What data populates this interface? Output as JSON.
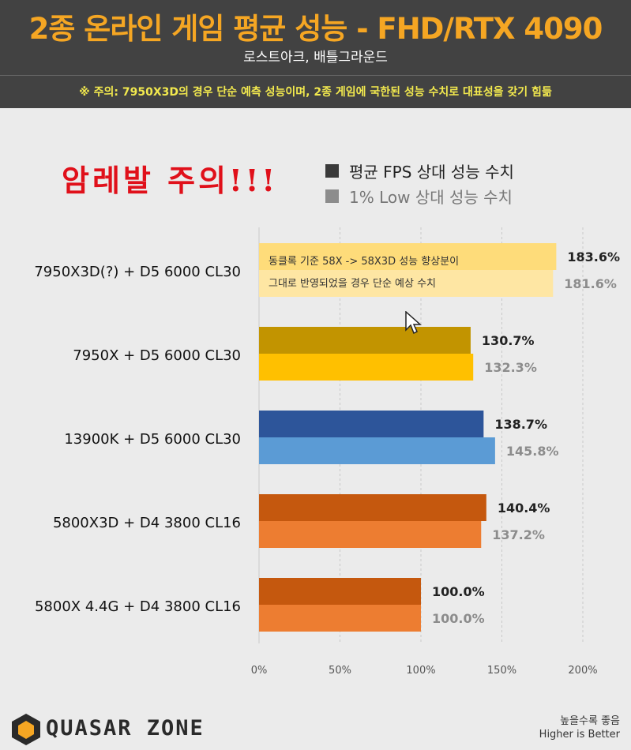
{
  "header": {
    "title": "2종 온라인 게임 평균 성능  -  FHD/RTX 4090",
    "subtitle": "로스트아크, 배틀그라운드",
    "note": "※ 주의: 7950X3D의 경우 단순 예측 성능이며, 2종 게임에 국한된 성능 수치로 대표성을 갖기 힘듦"
  },
  "warning": "암레발 주의!!!",
  "legend": [
    {
      "label": "평균 FPS 상대 성능 수치",
      "color": "#3a3a3a"
    },
    {
      "label": "1% Low 상대 성능 수치",
      "color": "#8c8c8c"
    }
  ],
  "callout": {
    "line1": "동클록 기준 58X -> 58X3D 성능 향상분이",
    "line2": "그대로 반영되었을 경우 단순 예상 수치"
  },
  "chart_data": {
    "type": "bar",
    "orientation": "horizontal",
    "categories": [
      "7950X3D(?) + D5 6000 CL30",
      "7950X + D5 6000 CL30",
      "13900K + D5 6000 CL30",
      "5800X3D + D4 3800 CL16",
      "5800X 4.4G + D4 3800 CL16"
    ],
    "series": [
      {
        "name": "평균 FPS 상대 성능 수치",
        "values": [
          183.6,
          130.7,
          138.7,
          140.4,
          100.0
        ],
        "labels": [
          "183.6%",
          "130.7%",
          "138.7%",
          "140.4%",
          "100.0%"
        ],
        "colors": [
          "#fedc7a",
          "#c29400",
          "#2d559a",
          "#c5580e",
          "#c5580e"
        ]
      },
      {
        "name": "1% Low 상대 성능 수치",
        "values": [
          181.6,
          132.3,
          145.8,
          137.2,
          100.0
        ],
        "labels": [
          "181.6%",
          "132.3%",
          "145.8%",
          "137.2%",
          "100.0%"
        ],
        "colors": [
          "#fee6a3",
          "#ffc000",
          "#5b9bd5",
          "#ed7d31",
          "#ed7d31"
        ]
      }
    ],
    "xlim": [
      0,
      200
    ],
    "xticks": [
      "0%",
      "50%",
      "100%",
      "150%",
      "200%"
    ],
    "grid": "vertical dashed"
  },
  "footer": {
    "brand": "QUASAR ZONE",
    "note1": "높을수록 좋음",
    "note2": "Higher is Better"
  },
  "colors": {
    "header_bg": "#424242",
    "title": "#f5a623",
    "note": "#f2e94e",
    "warning": "#e0101a",
    "avg_label": "#222222",
    "low_label": "#8c8c8c"
  }
}
